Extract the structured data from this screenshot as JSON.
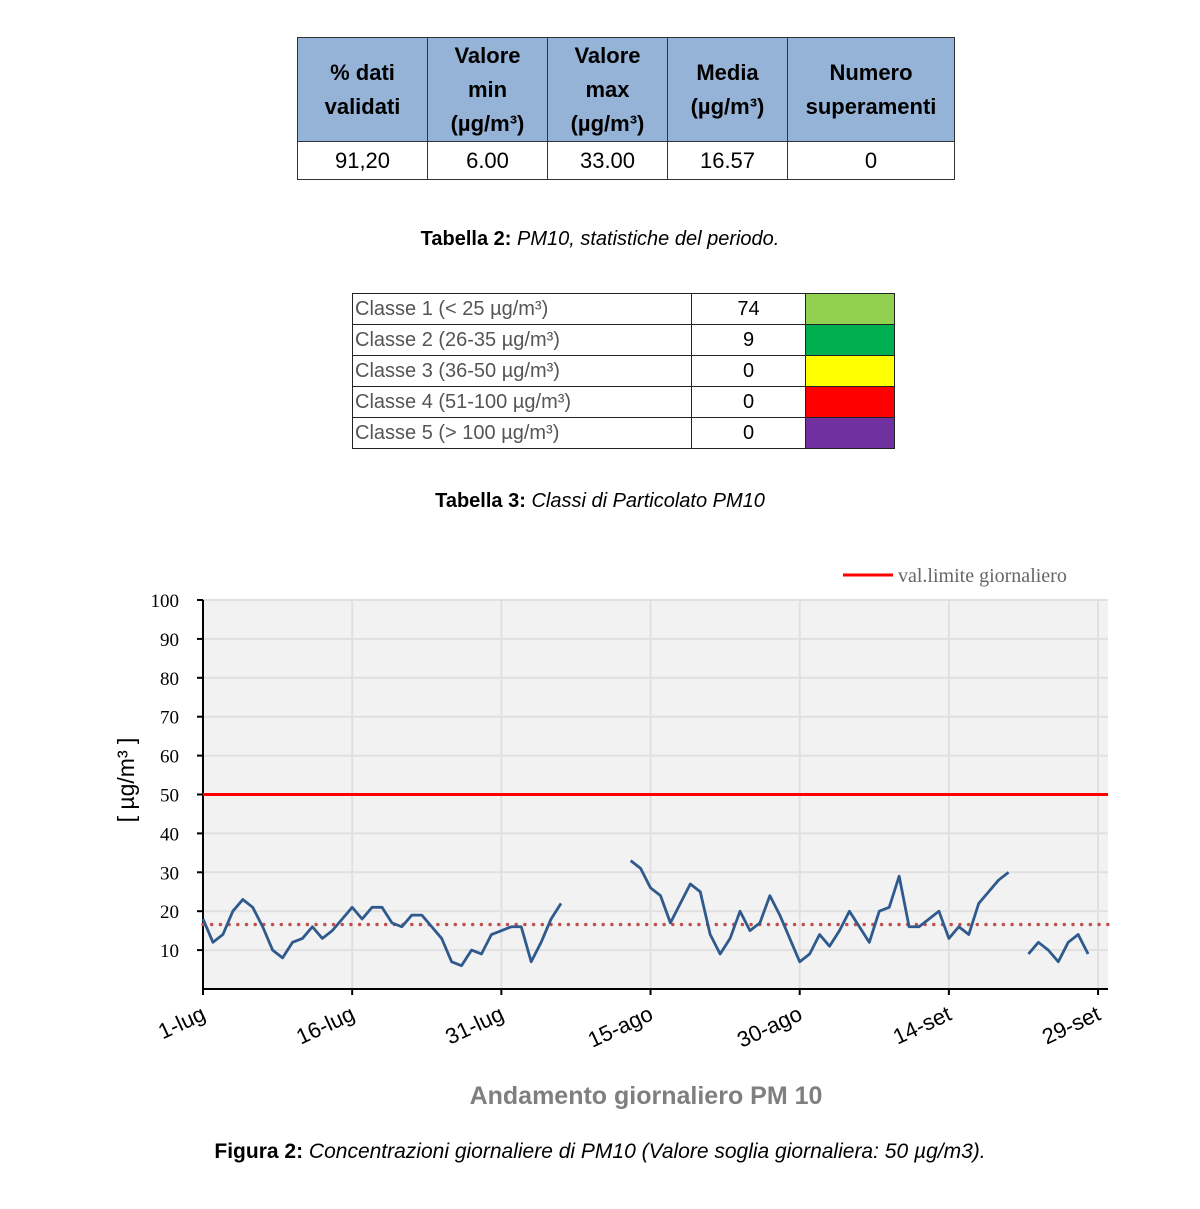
{
  "table2": {
    "headers": [
      "% dati validati",
      "Valore min (µg/m³)",
      "Valore max (µg/m³)",
      "Media (µg/m³)",
      "Numero superamenti"
    ],
    "header_lines": [
      [
        "% dati",
        "validati"
      ],
      [
        "Valore",
        "min",
        "(µg/m³)"
      ],
      [
        "Valore",
        "max",
        "(µg/m³)"
      ],
      [
        "Media",
        "(µg/m³)"
      ],
      [
        "Numero",
        "superamenti"
      ]
    ],
    "row": [
      "91,20",
      "6.00",
      "33.00",
      "16.57",
      "0"
    ],
    "header_color": "#95b3d7"
  },
  "caption2": {
    "bold": "Tabella 2:",
    "italic": "PM10, statistiche del periodo."
  },
  "table3": {
    "rows": [
      {
        "label": "Classe 1 (< 25 µg/m³)",
        "count": "74",
        "color": "#92d050"
      },
      {
        "label": "Classe 2 (26-35 µg/m³)",
        "count": "9",
        "color": "#00b050"
      },
      {
        "label": "Classe 3 (36-50 µg/m³)",
        "count": "0",
        "color": "#ffff00"
      },
      {
        "label": "Classe 4 (51-100 µg/m³)",
        "count": "0",
        "color": "#ff0000"
      },
      {
        "label": "Classe 5 (> 100 µg/m³)",
        "count": "0",
        "color": "#7030a0"
      }
    ]
  },
  "caption3": {
    "bold": "Tabella 3:",
    "italic": "Classi di Particolato PM10"
  },
  "chart_data": {
    "type": "line",
    "title": "Andamento giornaliero PM 10",
    "ylabel": "[ µg/m³ ]",
    "xlabel": "",
    "ylim": [
      0,
      100
    ],
    "yticks": [
      10,
      20,
      30,
      40,
      50,
      60,
      70,
      80,
      90,
      100
    ],
    "xlim_days": [
      0,
      91
    ],
    "xticks": [
      {
        "day": 0,
        "label": "1-lug"
      },
      {
        "day": 15,
        "label": "16-lug"
      },
      {
        "day": 30,
        "label": "31-lug"
      },
      {
        "day": 45,
        "label": "15-ago"
      },
      {
        "day": 60,
        "label": "30-ago"
      },
      {
        "day": 75,
        "label": "14-set"
      },
      {
        "day": 90,
        "label": "29-set"
      }
    ],
    "grid": true,
    "legend": {
      "position": "top-right",
      "entries": [
        "val.limite giornaliero"
      ]
    },
    "limit": {
      "name": "val.limite giornaliero",
      "value": 50,
      "color": "#ff0000"
    },
    "mean": {
      "value": 16.57,
      "color": "#c0504d"
    },
    "series": [
      {
        "name": "PM10",
        "color": "#2f5a8e",
        "segments": [
          {
            "start_day": 0,
            "values": [
              18,
              12,
              14,
              20,
              23,
              21,
              16,
              10,
              8,
              12,
              13,
              16,
              13,
              15,
              18,
              21,
              18,
              21,
              21,
              17,
              16,
              19,
              19,
              16,
              13,
              7,
              6,
              10,
              9,
              14,
              15,
              16,
              16,
              7,
              12,
              18,
              22
            ]
          },
          {
            "start_day": 43,
            "values": [
              33,
              31,
              26,
              24,
              17,
              22,
              27,
              25,
              14,
              9,
              13,
              20,
              15,
              17,
              24,
              19,
              13,
              7,
              9,
              14,
              11,
              15,
              20,
              16,
              12,
              20,
              21,
              29,
              16,
              16,
              18,
              20,
              13,
              16,
              14,
              22,
              25,
              28,
              30
            ]
          },
          {
            "start_day": 83,
            "values": [
              9,
              12,
              10,
              7,
              12,
              14,
              9
            ]
          }
        ]
      }
    ]
  },
  "caption_fig": {
    "bold": "Figura 2:",
    "italic": "Concentrazioni giornaliere di PM10 (Valore soglia giornaliera: 50 µg/m3)."
  }
}
